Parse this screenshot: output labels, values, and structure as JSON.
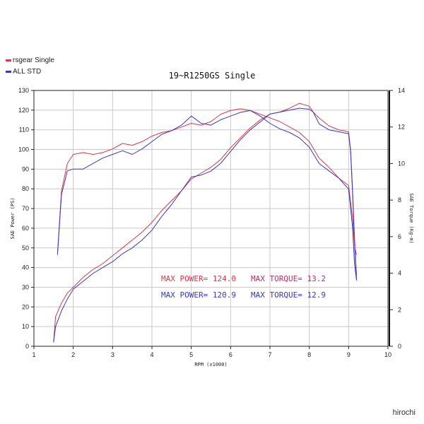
{
  "watermark": "hirochi",
  "chart_data": {
    "type": "line",
    "title": "19~R1250GS Single",
    "xlabel": "RPM (x1000)",
    "ylabel_left": "SAE Power (PS)",
    "ylabel_right": "SAE Torque (Kg-m)",
    "xlim": [
      1,
      10
    ],
    "ylim_left": [
      0,
      130
    ],
    "ylim_right": [
      0,
      14
    ],
    "x_ticks": [
      "1",
      "2",
      "3",
      "4",
      "5",
      "6",
      "7",
      "8",
      "9",
      "10"
    ],
    "y_ticks_left": [
      "0",
      "10",
      "20",
      "30",
      "40",
      "50",
      "60",
      "70",
      "80",
      "90",
      "100",
      "110",
      "120",
      "130"
    ],
    "y_ticks_right": [
      "0",
      "2",
      "4",
      "6",
      "8",
      "10",
      "12",
      "14"
    ],
    "grid": true,
    "legend_position": "top-left",
    "legend": [
      {
        "label": "rsgear Single",
        "color": "#d23a4e"
      },
      {
        "label": "ALL STD",
        "color": "#3a3ab8"
      }
    ],
    "annotations": [
      {
        "text": "MAX POWER= 124.0",
        "color": "#d23a4e"
      },
      {
        "text": "MAX TORQUE= 13.2",
        "color": "#b3306b"
      },
      {
        "text": "MAX POWER= 120.9",
        "color": "#3a3ab8"
      },
      {
        "text": "MAX TORQUE= 12.9",
        "color": "#3a3ab8"
      }
    ],
    "series": [
      {
        "name": "rsgear Single",
        "kind": "power",
        "axis": "left",
        "color": "#d23a4e",
        "points": [
          [
            1.5,
            2
          ],
          [
            1.55,
            15
          ],
          [
            1.7,
            22
          ],
          [
            1.85,
            27
          ],
          [
            2.0,
            30
          ],
          [
            2.25,
            35
          ],
          [
            2.5,
            39
          ],
          [
            2.75,
            42
          ],
          [
            3.0,
            46
          ],
          [
            3.25,
            50
          ],
          [
            3.5,
            54
          ],
          [
            3.75,
            58
          ],
          [
            4.0,
            63
          ],
          [
            4.25,
            69
          ],
          [
            4.5,
            74
          ],
          [
            4.75,
            79
          ],
          [
            5.0,
            85
          ],
          [
            5.25,
            88
          ],
          [
            5.5,
            91
          ],
          [
            5.75,
            95
          ],
          [
            6.0,
            101
          ],
          [
            6.25,
            106
          ],
          [
            6.5,
            111
          ],
          [
            6.75,
            115
          ],
          [
            7.0,
            118
          ],
          [
            7.25,
            119
          ],
          [
            7.5,
            121
          ],
          [
            7.75,
            123.5
          ],
          [
            8.0,
            122
          ],
          [
            8.1,
            119
          ],
          [
            8.25,
            116
          ],
          [
            8.5,
            112
          ],
          [
            8.75,
            110
          ],
          [
            9.0,
            109
          ],
          [
            9.05,
            100
          ],
          [
            9.1,
            80
          ],
          [
            9.15,
            55
          ],
          [
            9.2,
            36
          ]
        ]
      },
      {
        "name": "ALL STD",
        "kind": "power",
        "axis": "left",
        "color": "#3a3ab8",
        "points": [
          [
            1.5,
            2
          ],
          [
            1.55,
            10
          ],
          [
            1.7,
            18
          ],
          [
            1.85,
            24
          ],
          [
            2.0,
            29
          ],
          [
            2.25,
            33
          ],
          [
            2.5,
            37
          ],
          [
            2.75,
            40
          ],
          [
            3.0,
            43
          ],
          [
            3.25,
            47
          ],
          [
            3.5,
            50
          ],
          [
            3.75,
            54
          ],
          [
            4.0,
            59
          ],
          [
            4.25,
            66
          ],
          [
            4.5,
            72
          ],
          [
            4.75,
            79
          ],
          [
            5.0,
            86
          ],
          [
            5.25,
            87
          ],
          [
            5.5,
            89
          ],
          [
            5.75,
            93
          ],
          [
            6.0,
            99
          ],
          [
            6.25,
            105
          ],
          [
            6.5,
            110
          ],
          [
            6.75,
            114
          ],
          [
            7.0,
            118
          ],
          [
            7.25,
            119
          ],
          [
            7.5,
            120
          ],
          [
            7.75,
            121
          ],
          [
            8.0,
            120.5
          ],
          [
            8.1,
            119
          ],
          [
            8.25,
            113
          ],
          [
            8.5,
            110
          ],
          [
            8.75,
            109
          ],
          [
            9.0,
            108
          ],
          [
            9.05,
            99
          ],
          [
            9.1,
            78
          ],
          [
            9.15,
            52
          ],
          [
            9.2,
            34
          ]
        ]
      },
      {
        "name": "rsgear Single",
        "kind": "torque",
        "axis": "right",
        "color": "#d23a4e",
        "points": [
          [
            1.6,
            5.1
          ],
          [
            1.7,
            8.5
          ],
          [
            1.85,
            10.0
          ],
          [
            2.0,
            10.5
          ],
          [
            2.25,
            10.6
          ],
          [
            2.5,
            10.5
          ],
          [
            2.75,
            10.6
          ],
          [
            3.0,
            10.8
          ],
          [
            3.25,
            11.1
          ],
          [
            3.5,
            11.0
          ],
          [
            3.75,
            11.2
          ],
          [
            4.0,
            11.5
          ],
          [
            4.25,
            11.7
          ],
          [
            4.5,
            11.8
          ],
          [
            4.75,
            12.0
          ],
          [
            5.0,
            12.2
          ],
          [
            5.25,
            12.1
          ],
          [
            5.5,
            12.3
          ],
          [
            5.75,
            12.7
          ],
          [
            6.0,
            12.9
          ],
          [
            6.25,
            13.0
          ],
          [
            6.5,
            12.9
          ],
          [
            6.75,
            12.7
          ],
          [
            7.0,
            12.5
          ],
          [
            7.25,
            12.3
          ],
          [
            7.5,
            12.0
          ],
          [
            7.75,
            11.7
          ],
          [
            8.0,
            11.2
          ],
          [
            8.25,
            10.3
          ],
          [
            8.5,
            9.8
          ],
          [
            8.75,
            9.2
          ],
          [
            9.0,
            8.8
          ],
          [
            9.1,
            7.0
          ],
          [
            9.15,
            5.5
          ],
          [
            9.2,
            5.0
          ]
        ]
      },
      {
        "name": "ALL STD",
        "kind": "torque",
        "axis": "right",
        "color": "#3a3ab8",
        "points": [
          [
            1.6,
            5.0
          ],
          [
            1.7,
            8.3
          ],
          [
            1.85,
            9.6
          ],
          [
            2.0,
            9.7
          ],
          [
            2.25,
            9.7
          ],
          [
            2.5,
            10.0
          ],
          [
            2.75,
            10.3
          ],
          [
            3.0,
            10.5
          ],
          [
            3.25,
            10.7
          ],
          [
            3.5,
            10.5
          ],
          [
            3.75,
            10.8
          ],
          [
            4.0,
            11.2
          ],
          [
            4.25,
            11.6
          ],
          [
            4.5,
            11.8
          ],
          [
            4.75,
            12.1
          ],
          [
            5.0,
            12.6
          ],
          [
            5.25,
            12.2
          ],
          [
            5.5,
            12.1
          ],
          [
            5.75,
            12.4
          ],
          [
            6.0,
            12.6
          ],
          [
            6.25,
            12.8
          ],
          [
            6.5,
            12.9
          ],
          [
            6.75,
            12.6
          ],
          [
            7.0,
            12.2
          ],
          [
            7.25,
            11.9
          ],
          [
            7.5,
            11.7
          ],
          [
            7.75,
            11.4
          ],
          [
            8.0,
            10.9
          ],
          [
            8.25,
            10.0
          ],
          [
            8.5,
            9.6
          ],
          [
            8.75,
            9.2
          ],
          [
            9.0,
            8.6
          ],
          [
            9.1,
            6.5
          ],
          [
            9.15,
            4.5
          ],
          [
            9.2,
            3.6
          ]
        ]
      }
    ]
  }
}
